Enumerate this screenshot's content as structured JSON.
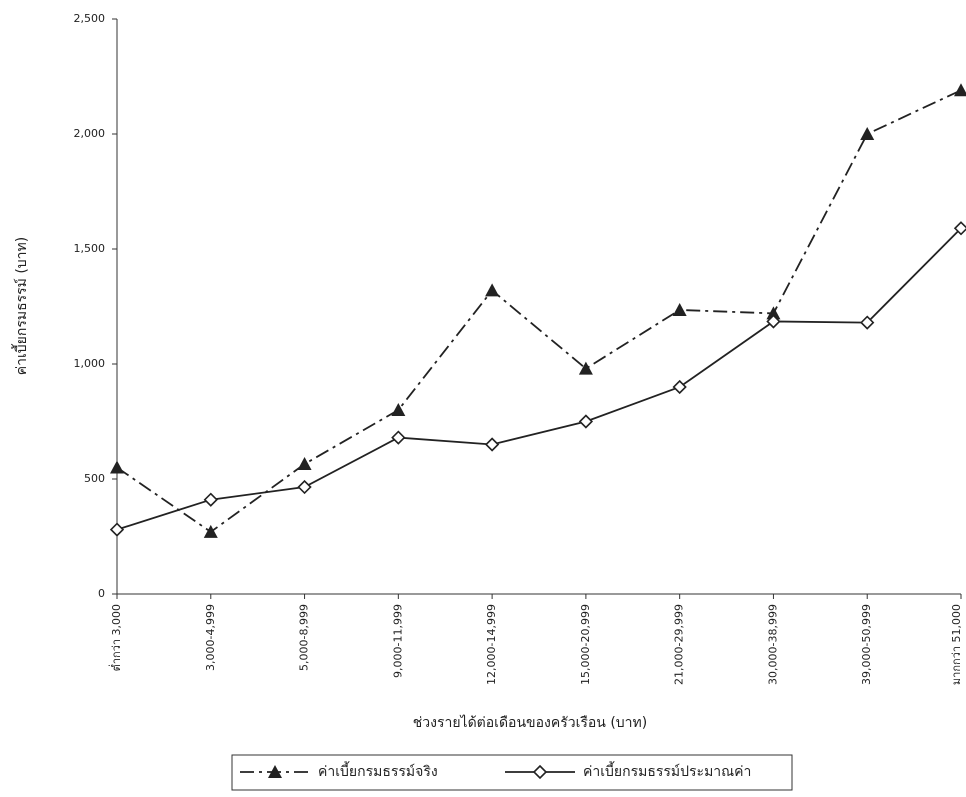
{
  "chart_data": {
    "type": "line",
    "x_label": "ช่วงรายได้ต่อเดือนของครัวเรือน (บาท)",
    "y_label": "ค่าเบี้ยกรมธรรม์ (บาท)",
    "categories": [
      "ต่ำกว่า 3,000",
      "3,000-4,999",
      "5,000-8,999",
      "9,000-11,999",
      "12,000-14,999",
      "15,000-20,999",
      "21,000-29,999",
      "30,000-38,999",
      "39,000-50,999",
      "มากกว่า 51,000"
    ],
    "series": [
      {
        "name": "ค่าเบี้ยกรมธรรม์จริง",
        "color": "#222222",
        "line_style": "dashdot",
        "marker": "triangle",
        "values": [
          550,
          270,
          565,
          800,
          1320,
          980,
          1235,
          1220,
          2000,
          2190
        ]
      },
      {
        "name": "ค่าเบี้ยกรมธรรม์ประมาณค่า",
        "color": "#222222",
        "line_style": "solid",
        "marker": "diamond",
        "values": [
          280,
          410,
          465,
          680,
          650,
          750,
          900,
          1185,
          1180,
          1590
        ]
      }
    ],
    "ylim": [
      0,
      2500
    ],
    "yticks": [
      0,
      500,
      {
        "value": 1000,
        "label": "1,000"
      },
      {
        "value": 1500,
        "label": "1,500"
      },
      {
        "value": 2000,
        "label": "2,000"
      },
      {
        "value": 2500,
        "label": "2,500"
      }
    ],
    "grid": false,
    "legend": "bottom"
  }
}
